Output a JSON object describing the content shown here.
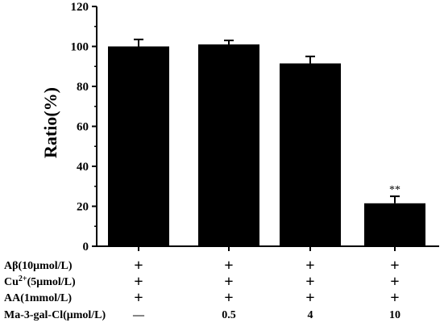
{
  "chart_data": {
    "type": "bar",
    "ylabel": "Ratio(%)",
    "ylim": [
      0,
      120
    ],
    "yticks": [
      "0",
      "20",
      "40",
      "60",
      "80",
      "100",
      "120"
    ],
    "values": [
      100,
      101,
      91.5,
      21.5
    ],
    "errors": [
      3.5,
      2,
      3.5,
      3.5
    ],
    "significance": [
      "",
      "",
      "",
      "**"
    ],
    "bar_color": "#000000",
    "condition_rows": [
      {
        "label_html": "Aβ(10μmol/L)",
        "values": [
          "+",
          "+",
          "+",
          "+"
        ]
      },
      {
        "label_html": "Cu<tspan baseline-shift='super' font-size='10'>2+</tspan>(5μmol/L)",
        "values": [
          "+",
          "+",
          "+",
          "+"
        ]
      },
      {
        "label_html": "AA(1mmol/L)",
        "values": [
          "+",
          "+",
          "+",
          "+"
        ]
      },
      {
        "label_html": "Ma-3-gal-Cl(μmol/L)",
        "values": [
          "—",
          "0.5",
          "4",
          "10"
        ]
      }
    ]
  }
}
